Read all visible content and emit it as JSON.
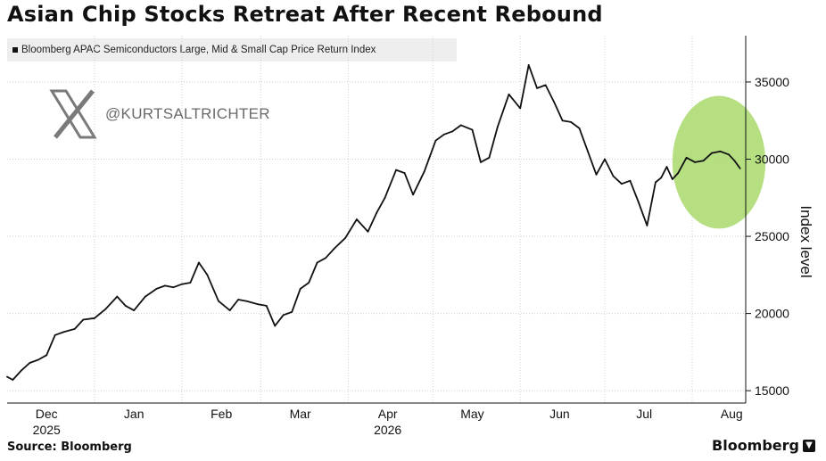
{
  "title": "Asian Chip Stocks Retreat After Recent Rebound",
  "legend_label": "Bloomberg APAC Semiconductors Large, Mid & Small Cap Price Return Index",
  "watermark": "@KURTSALTRICHTER",
  "source": "Source: Bloomberg",
  "brand": "Bloomberg",
  "colors": {
    "line": "#111111",
    "highlight": "#a8d96a",
    "grid": "#d0d0d0"
  },
  "chart_data": {
    "type": "line",
    "title": "Asian Chip Stocks Retreat After Recent Rebound",
    "ylabel": "Index level",
    "xlabel": "",
    "ylim": [
      14200,
      38000
    ],
    "yticks": [
      15000,
      20000,
      25000,
      30000,
      35000
    ],
    "ytick_labels": [
      "15000",
      "20000",
      "25000",
      "30000",
      "35000"
    ],
    "xlim": [
      "2025-12-01",
      "2026-08-20"
    ],
    "xticks": [
      {
        "label": "Dec",
        "sublabel": "2025",
        "date": "2025-12-15"
      },
      {
        "label": "Jan",
        "sublabel": "",
        "date": "2026-01-15"
      },
      {
        "label": "Feb",
        "sublabel": "",
        "date": "2026-02-15"
      },
      {
        "label": "Mar",
        "sublabel": "",
        "date": "2026-03-15"
      },
      {
        "label": "Apr",
        "sublabel": "2026",
        "date": "2026-04-15"
      },
      {
        "label": "May",
        "sublabel": "",
        "date": "2026-05-15"
      },
      {
        "label": "Jun",
        "sublabel": "",
        "date": "2026-06-15"
      },
      {
        "label": "Jul",
        "sublabel": "",
        "date": "2026-07-15"
      },
      {
        "label": "Aug",
        "sublabel": "",
        "date": "2026-08-15"
      }
    ],
    "vgrid_dates": [
      "2026-01-01",
      "2026-02-01",
      "2026-03-01",
      "2026-04-01",
      "2026-05-01",
      "2026-06-01",
      "2026-07-01",
      "2026-08-01"
    ],
    "highlight": {
      "from": "2026-07-25",
      "to": "2026-08-27",
      "y_low": 25500,
      "y_high": 34100
    },
    "grid": true,
    "legend_position": "top-left",
    "series": [
      {
        "name": "Bloomberg APAC Semiconductors Large, Mid & Small Cap Price Return Index",
        "x": [
          "2025-12-01",
          "2025-12-03",
          "2025-12-06",
          "2025-12-09",
          "2025-12-12",
          "2025-12-15",
          "2025-12-18",
          "2025-12-21",
          "2025-12-25",
          "2025-12-28",
          "2026-01-01",
          "2026-01-05",
          "2026-01-09",
          "2026-01-12",
          "2026-01-15",
          "2026-01-19",
          "2026-01-23",
          "2026-01-26",
          "2026-01-29",
          "2026-02-01",
          "2026-02-04",
          "2026-02-07",
          "2026-02-10",
          "2026-02-14",
          "2026-02-18",
          "2026-02-21",
          "2026-02-24",
          "2026-02-28",
          "2026-03-03",
          "2026-03-06",
          "2026-03-09",
          "2026-03-12",
          "2026-03-15",
          "2026-03-18",
          "2026-03-21",
          "2026-03-24",
          "2026-03-27",
          "2026-03-31",
          "2026-04-04",
          "2026-04-08",
          "2026-04-11",
          "2026-04-14",
          "2026-04-18",
          "2026-04-21",
          "2026-04-24",
          "2026-04-28",
          "2026-05-02",
          "2026-05-05",
          "2026-05-08",
          "2026-05-11",
          "2026-05-15",
          "2026-05-18",
          "2026-05-21",
          "2026-05-24",
          "2026-05-28",
          "2026-06-01",
          "2026-06-04",
          "2026-06-07",
          "2026-06-10",
          "2026-06-13",
          "2026-06-16",
          "2026-06-19",
          "2026-06-22",
          "2026-06-25",
          "2026-06-28",
          "2026-07-01",
          "2026-07-04",
          "2026-07-07",
          "2026-07-10",
          "2026-07-13",
          "2026-07-16",
          "2026-07-19",
          "2026-07-21",
          "2026-07-23",
          "2026-07-25",
          "2026-07-27",
          "2026-07-30",
          "2026-08-02",
          "2026-08-05",
          "2026-08-08",
          "2026-08-11",
          "2026-08-14",
          "2026-08-16",
          "2026-08-18"
        ],
        "values": [
          15900,
          15700,
          16300,
          16800,
          17000,
          17300,
          18600,
          18800,
          19000,
          19600,
          19700,
          20300,
          21100,
          20500,
          20200,
          21100,
          21600,
          21800,
          21700,
          21900,
          22000,
          23300,
          22500,
          20800,
          20200,
          20900,
          20800,
          20600,
          20500,
          19200,
          19900,
          20100,
          21600,
          22000,
          23300,
          23600,
          24200,
          24900,
          26100,
          25300,
          26500,
          27500,
          29300,
          29100,
          27700,
          29200,
          31200,
          31600,
          31800,
          32200,
          31900,
          29800,
          30100,
          32100,
          34200,
          33300,
          36100,
          34600,
          34800,
          33700,
          32500,
          32400,
          32000,
          30500,
          29000,
          30000,
          28900,
          28400,
          28600,
          27200,
          25700,
          28500,
          28800,
          29500,
          28700,
          29100,
          30100,
          29800,
          29900,
          30400,
          30500,
          30300,
          29900,
          29400
        ]
      }
    ]
  }
}
